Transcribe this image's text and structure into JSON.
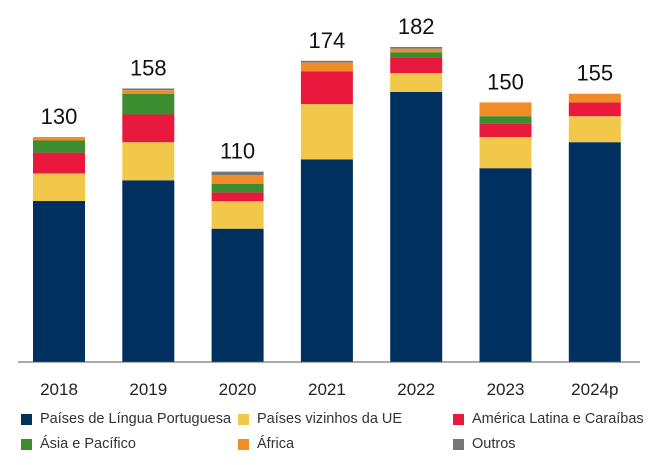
{
  "chart_data": {
    "type": "bar",
    "stacked": true,
    "categories": [
      "2018",
      "2019",
      "2020",
      "2021",
      "2022",
      "2023",
      "2024p"
    ],
    "totals": [
      130,
      158,
      110,
      174,
      182,
      150,
      155
    ],
    "ylim": [
      0,
      182
    ],
    "grid": false,
    "legend_position": "bottom",
    "series": [
      {
        "name": "Países de Língua Portuguesa",
        "color": "#00305f",
        "values": [
          93,
          105,
          77,
          117,
          156,
          112,
          127
        ]
      },
      {
        "name": "Países vizinhos da UE",
        "color": "#f2c84b",
        "values": [
          16,
          22,
          16,
          32,
          11,
          18,
          15
        ]
      },
      {
        "name": "América Latina e Caraíbas",
        "color": "#e8193c",
        "values": [
          12,
          16,
          5,
          19,
          9,
          8,
          8
        ]
      },
      {
        "name": "Ásia e Pacífico",
        "color": "#3c8d2f",
        "values": [
          7,
          12,
          5,
          0,
          3,
          4,
          0
        ]
      },
      {
        "name": "África",
        "color": "#f28c28",
        "values": [
          2,
          2,
          5,
          5,
          2,
          8,
          5
        ]
      },
      {
        "name": "Outros",
        "color": "#767676",
        "values": [
          0,
          1,
          2,
          1,
          1,
          0,
          0
        ]
      }
    ]
  }
}
